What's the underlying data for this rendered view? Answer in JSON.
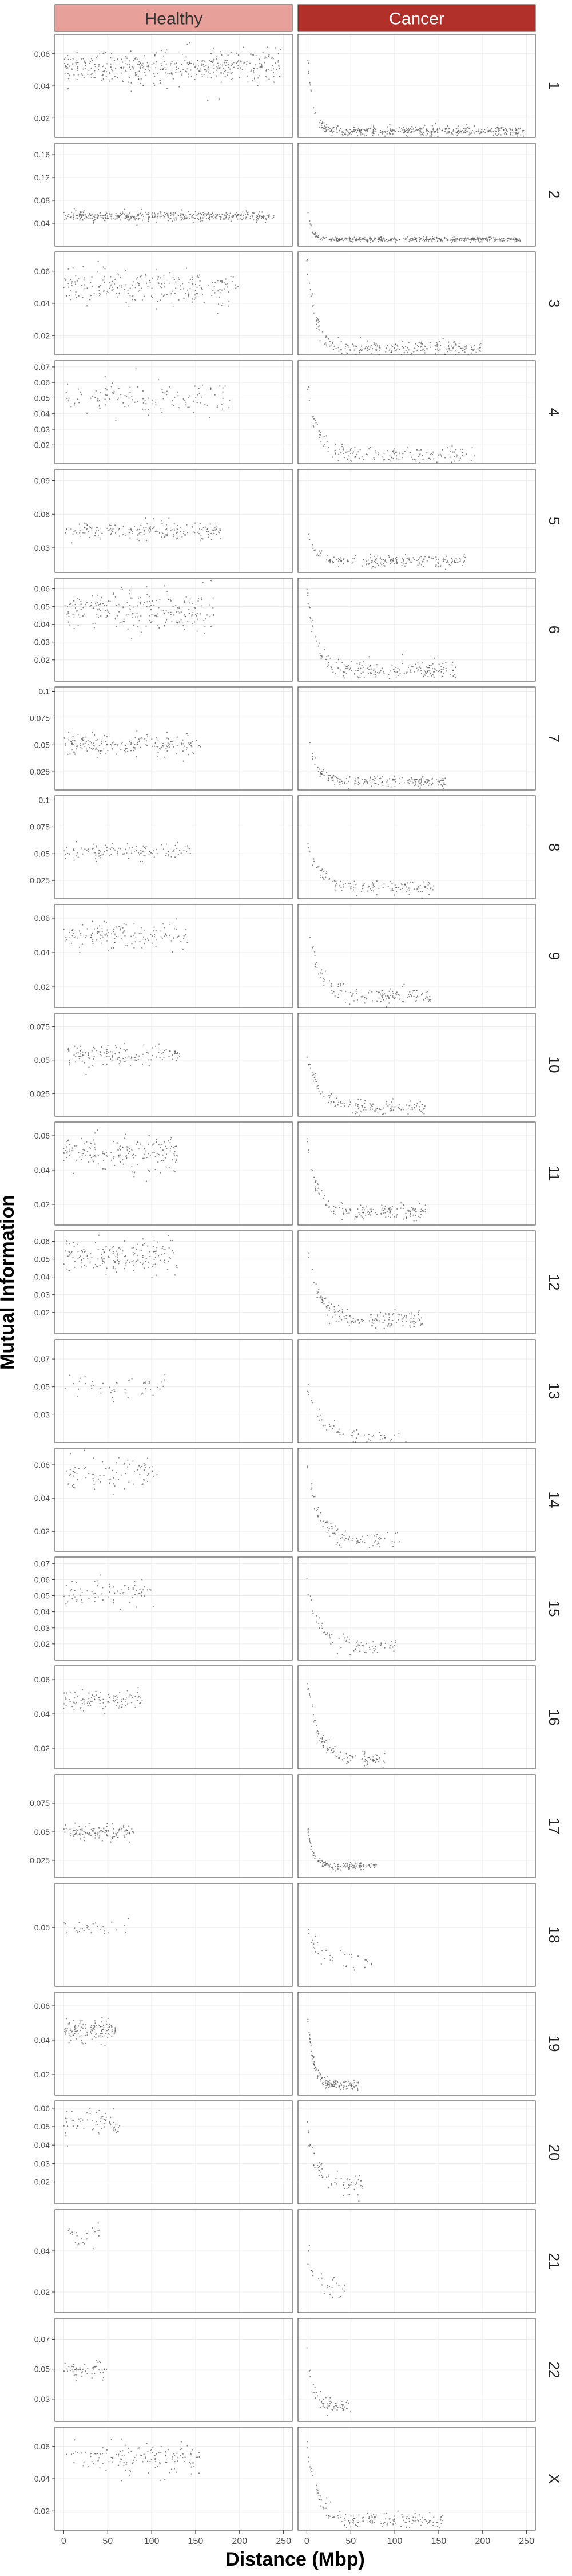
{
  "chart_data": {
    "type": "scatter",
    "facet_columns": [
      "Healthy",
      "Cancer"
    ],
    "facet_rows": [
      "1",
      "2",
      "3",
      "4",
      "5",
      "6",
      "7",
      "8",
      "9",
      "10",
      "11",
      "12",
      "13",
      "14",
      "15",
      "16",
      "17",
      "18",
      "19",
      "20",
      "21",
      "22",
      "X"
    ],
    "xlabel": "Distance (Mbp)",
    "ylabel": "Mutual Information",
    "x_ticks": [
      0,
      50,
      100,
      150,
      200,
      250
    ],
    "xlim": [
      -10,
      260
    ],
    "grid": true,
    "point_color": "#555555",
    "strip_colors": {
      "Healthy": "#e8a19a",
      "Cancer": "#b2302a"
    },
    "panels": [
      {
        "row": "1",
        "max_x": 247,
        "y_ticks": [
          0.02,
          0.04,
          0.06
        ],
        "ylim": [
          0.008,
          0.072
        ],
        "healthy": {
          "center": 0.052,
          "spread": 0.005,
          "density": 1.0
        },
        "cancer": {
          "floor": 0.012,
          "peak": 0.066,
          "decay": 6,
          "spread": 0.0015,
          "density": 1.0
        }
      },
      {
        "row": "2",
        "max_x": 243,
        "y_ticks": [
          0.04,
          0.08,
          0.12,
          0.16
        ],
        "ylim": [
          0.0,
          0.18
        ],
        "healthy": {
          "center": 0.052,
          "spread": 0.004,
          "density": 1.0
        },
        "cancer": {
          "floor": 0.012,
          "peak": 0.07,
          "decay": 5,
          "spread": 0.002,
          "density": 1.0
        }
      },
      {
        "row": "3",
        "max_x": 199,
        "y_ticks": [
          0.02,
          0.04,
          0.06
        ],
        "ylim": [
          0.008,
          0.072
        ],
        "healthy": {
          "center": 0.05,
          "spread": 0.005,
          "density": 0.7
        },
        "cancer": {
          "floor": 0.012,
          "peak": 0.066,
          "decay": 10,
          "spread": 0.0025,
          "density": 0.7
        }
      },
      {
        "row": "4",
        "max_x": 191,
        "y_ticks": [
          0.02,
          0.03,
          0.04,
          0.05,
          0.06,
          0.07
        ],
        "ylim": [
          0.008,
          0.074
        ],
        "healthy": {
          "center": 0.05,
          "spread": 0.005,
          "density": 0.4
        },
        "cancer": {
          "floor": 0.013,
          "peak": 0.06,
          "decay": 12,
          "spread": 0.003,
          "density": 0.5
        }
      },
      {
        "row": "5",
        "max_x": 181,
        "y_ticks": [
          0.03,
          0.06,
          0.09
        ],
        "ylim": [
          0.008,
          0.1
        ],
        "healthy": {
          "center": 0.045,
          "spread": 0.004,
          "density": 0.6
        },
        "cancer": {
          "floor": 0.018,
          "peak": 0.05,
          "decay": 8,
          "spread": 0.0025,
          "density": 0.6
        }
      },
      {
        "row": "6",
        "max_x": 171,
        "y_ticks": [
          0.02,
          0.03,
          0.04,
          0.05,
          0.06
        ],
        "ylim": [
          0.008,
          0.066
        ],
        "healthy": {
          "center": 0.048,
          "spread": 0.006,
          "density": 0.8
        },
        "cancer": {
          "floor": 0.014,
          "peak": 0.06,
          "decay": 10,
          "spread": 0.0025,
          "density": 0.7
        }
      },
      {
        "row": "7",
        "max_x": 159,
        "y_ticks": [
          0.025,
          0.05,
          0.075,
          0.1
        ],
        "ylim": [
          0.008,
          0.104
        ],
        "healthy": {
          "center": 0.05,
          "spread": 0.005,
          "density": 0.7
        },
        "cancer": {
          "floor": 0.016,
          "peak": 0.06,
          "decay": 10,
          "spread": 0.0025,
          "density": 0.7
        }
      },
      {
        "row": "8",
        "max_x": 146,
        "y_ticks": [
          0.025,
          0.05,
          0.075,
          0.1
        ],
        "ylim": [
          0.008,
          0.104
        ],
        "healthy": {
          "center": 0.052,
          "spread": 0.004,
          "density": 0.5
        },
        "cancer": {
          "floor": 0.018,
          "peak": 0.06,
          "decay": 14,
          "spread": 0.003,
          "density": 0.5
        }
      },
      {
        "row": "9",
        "max_x": 141,
        "y_ticks": [
          0.02,
          0.04,
          0.06
        ],
        "ylim": [
          0.008,
          0.068
        ],
        "healthy": {
          "center": 0.05,
          "spread": 0.004,
          "density": 0.6
        },
        "cancer": {
          "floor": 0.014,
          "peak": 0.055,
          "decay": 15,
          "spread": 0.0025,
          "density": 0.6
        }
      },
      {
        "row": "10",
        "max_x": 135,
        "y_ticks": [
          0.025,
          0.05,
          0.075
        ],
        "ylim": [
          0.008,
          0.085
        ],
        "healthy": {
          "center": 0.053,
          "spread": 0.004,
          "density": 0.6
        },
        "cancer": {
          "floor": 0.014,
          "peak": 0.055,
          "decay": 15,
          "spread": 0.0025,
          "density": 0.6
        }
      },
      {
        "row": "11",
        "max_x": 135,
        "y_ticks": [
          0.02,
          0.04,
          0.06
        ],
        "ylim": [
          0.008,
          0.068
        ],
        "healthy": {
          "center": 0.05,
          "spread": 0.005,
          "density": 0.8
        },
        "cancer": {
          "floor": 0.016,
          "peak": 0.06,
          "decay": 10,
          "spread": 0.0025,
          "density": 0.7
        }
      },
      {
        "row": "12",
        "max_x": 133,
        "y_ticks": [
          0.02,
          0.03,
          0.04,
          0.05,
          0.06
        ],
        "ylim": [
          0.008,
          0.066
        ],
        "healthy": {
          "center": 0.05,
          "spread": 0.005,
          "density": 0.8
        },
        "cancer": {
          "floor": 0.016,
          "peak": 0.06,
          "decay": 12,
          "spread": 0.0025,
          "density": 0.7
        }
      },
      {
        "row": "13",
        "max_x": 115,
        "y_ticks": [
          0.03,
          0.05,
          0.07
        ],
        "ylim": [
          0.01,
          0.084
        ],
        "healthy": {
          "center": 0.05,
          "spread": 0.004,
          "density": 0.25
        },
        "cancer": {
          "floor": 0.014,
          "peak": 0.05,
          "decay": 15,
          "spread": 0.003,
          "density": 0.3
        }
      },
      {
        "row": "14",
        "max_x": 107,
        "y_ticks": [
          0.02,
          0.04,
          0.06
        ],
        "ylim": [
          0.008,
          0.07
        ],
        "healthy": {
          "center": 0.054,
          "spread": 0.005,
          "density": 0.5
        },
        "cancer": {
          "floor": 0.014,
          "peak": 0.06,
          "decay": 14,
          "spread": 0.0025,
          "density": 0.5
        }
      },
      {
        "row": "15",
        "max_x": 102,
        "y_ticks": [
          0.02,
          0.03,
          0.04,
          0.05,
          0.06,
          0.07
        ],
        "ylim": [
          0.01,
          0.074
        ],
        "healthy": {
          "center": 0.052,
          "spread": 0.004,
          "density": 0.45
        },
        "cancer": {
          "floor": 0.018,
          "peak": 0.06,
          "decay": 14,
          "spread": 0.003,
          "density": 0.45
        }
      },
      {
        "row": "16",
        "max_x": 90,
        "y_ticks": [
          0.02,
          0.04,
          0.06
        ],
        "ylim": [
          0.008,
          0.068
        ],
        "healthy": {
          "center": 0.048,
          "spread": 0.003,
          "density": 0.7
        },
        "cancer": {
          "floor": 0.014,
          "peak": 0.06,
          "decay": 12,
          "spread": 0.002,
          "density": 0.7
        }
      },
      {
        "row": "17",
        "max_x": 81,
        "y_ticks": [
          0.025,
          0.05,
          0.075
        ],
        "ylim": [
          0.01,
          0.1
        ],
        "healthy": {
          "center": 0.05,
          "spread": 0.003,
          "density": 0.8
        },
        "cancer": {
          "floor": 0.02,
          "peak": 0.06,
          "decay": 6,
          "spread": 0.0015,
          "density": 0.8
        }
      },
      {
        "row": "18",
        "max_x": 78,
        "y_ticks": [
          0.05
        ],
        "ylim": [
          0.01,
          0.08
        ],
        "healthy": {
          "center": 0.05,
          "spread": 0.003,
          "density": 0.2
        },
        "cancer": {
          "floor": 0.025,
          "peak": 0.05,
          "decay": 15,
          "spread": 0.003,
          "density": 0.25
        }
      },
      {
        "row": "19",
        "max_x": 59,
        "y_ticks": [
          0.02,
          0.04,
          0.06
        ],
        "ylim": [
          0.008,
          0.068
        ],
        "healthy": {
          "center": 0.046,
          "spread": 0.003,
          "density": 0.9
        },
        "cancer": {
          "floor": 0.014,
          "peak": 0.062,
          "decay": 6,
          "spread": 0.0015,
          "density": 0.9
        }
      },
      {
        "row": "20",
        "max_x": 64,
        "y_ticks": [
          0.02,
          0.03,
          0.04,
          0.05,
          0.06
        ],
        "ylim": [
          0.008,
          0.064
        ],
        "healthy": {
          "center": 0.052,
          "spread": 0.004,
          "density": 0.45
        },
        "cancer": {
          "floor": 0.018,
          "peak": 0.05,
          "decay": 12,
          "spread": 0.003,
          "density": 0.45
        }
      },
      {
        "row": "21",
        "max_x": 46,
        "y_ticks": [
          0.02,
          0.04
        ],
        "ylim": [
          0.01,
          0.06
        ],
        "healthy": {
          "center": 0.048,
          "spread": 0.003,
          "density": 0.15
        },
        "cancer": {
          "floor": 0.022,
          "peak": 0.04,
          "decay": 10,
          "spread": 0.003,
          "density": 0.2
        }
      },
      {
        "row": "22",
        "max_x": 50,
        "y_ticks": [
          0.03,
          0.05,
          0.07
        ],
        "ylim": [
          0.015,
          0.084
        ],
        "healthy": {
          "center": 0.05,
          "spread": 0.003,
          "density": 0.4
        },
        "cancer": {
          "floor": 0.025,
          "peak": 0.065,
          "decay": 6,
          "spread": 0.0025,
          "density": 0.4
        }
      },
      {
        "row": "X",
        "max_x": 155,
        "y_ticks": [
          0.02,
          0.04,
          0.06
        ],
        "ylim": [
          0.008,
          0.072
        ],
        "healthy": {
          "center": 0.053,
          "spread": 0.005,
          "density": 0.55
        },
        "cancer": {
          "floor": 0.014,
          "peak": 0.062,
          "decay": 12,
          "spread": 0.0025,
          "density": 0.6
        }
      }
    ]
  }
}
